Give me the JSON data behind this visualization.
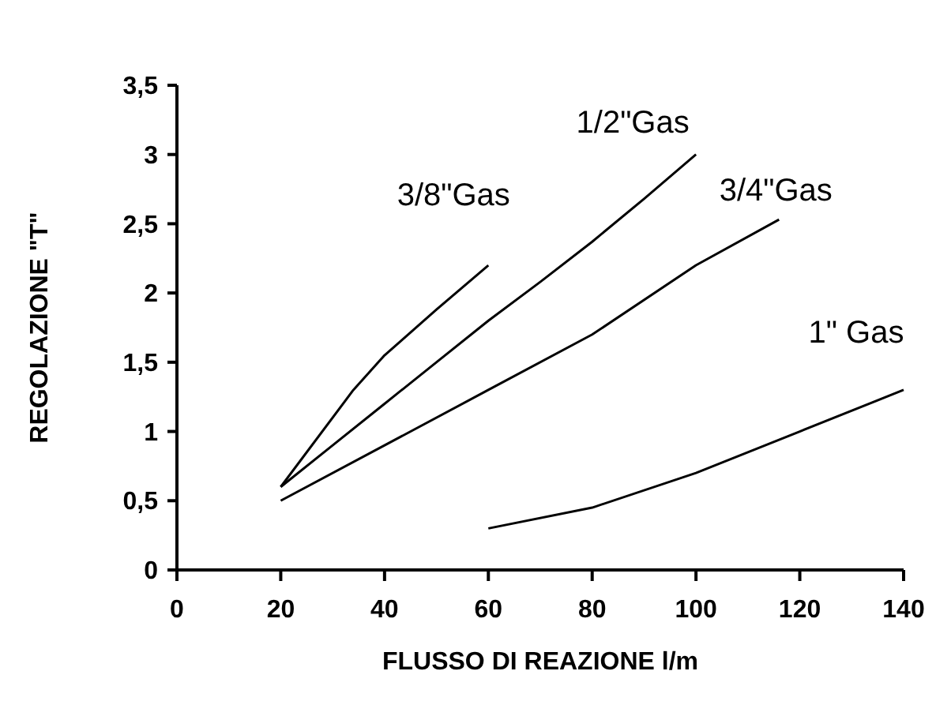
{
  "chart_data": {
    "type": "line",
    "xlabel": "FLUSSO DI REAZIONE l/m",
    "ylabel": "REGOLAZIONE \"T\"",
    "xlim": [
      0,
      140
    ],
    "xticks": [
      0,
      20,
      40,
      60,
      80,
      100,
      120,
      140
    ],
    "ylim": [
      0,
      3.5
    ],
    "yticks": [
      0,
      {
        "value": 0.5,
        "label": "0,5"
      },
      1,
      {
        "value": 1.5,
        "label": "1,5"
      },
      2,
      {
        "value": 2.5,
        "label": "2,5"
      },
      3,
      {
        "value": 3.5,
        "label": "3,5"
      }
    ],
    "grid": false,
    "marker": "none",
    "line_style": "solid",
    "series": [
      {
        "name": "3/8\"Gas",
        "color": "#000000",
        "x": [
          20,
          34,
          40,
          50,
          60
        ],
        "values": [
          0.6,
          1.3,
          1.55,
          1.88,
          2.2
        ]
      },
      {
        "name": "1/2\"Gas",
        "color": "#000000",
        "x": [
          20,
          30,
          40,
          50,
          60,
          70,
          80,
          90,
          100
        ],
        "values": [
          0.6,
          0.9,
          1.2,
          1.5,
          1.8,
          2.08,
          2.37,
          2.68,
          3.0
        ]
      },
      {
        "name": "3/4\"Gas",
        "color": "#000000",
        "x": [
          20,
          40,
          60,
          80,
          100,
          116
        ],
        "values": [
          0.5,
          0.9,
          1.3,
          1.7,
          2.2,
          2.53
        ]
      },
      {
        "name": "1\" Gas",
        "color": "#000000",
        "x": [
          60,
          80,
          100,
          120,
          140
        ],
        "values": [
          0.3,
          0.45,
          0.7,
          1.0,
          1.3
        ]
      }
    ]
  }
}
